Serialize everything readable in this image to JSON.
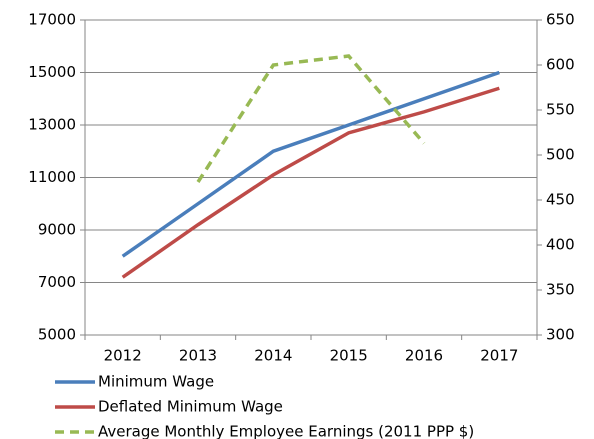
{
  "chart_data": {
    "type": "line",
    "categories": [
      "2012",
      "2013",
      "2014",
      "2015",
      "2016",
      "2017"
    ],
    "series": [
      {
        "name": "Minimum Wage",
        "color": "#4a7ebb",
        "values": [
          8000,
          10000,
          12000,
          13000,
          14000,
          15000
        ]
      },
      {
        "name": "Deflated Minimum Wage",
        "color": "#be4b48",
        "values": [
          7200,
          9200,
          11100,
          12700,
          13500,
          14400
        ]
      },
      {
        "name": "Average Monthly Employee Earnings (2011 PPP $)",
        "color": "#98b954",
        "axis": "y2",
        "dashed": true,
        "values": [
          null,
          470,
          600,
          610,
          513,
          null
        ]
      }
    ],
    "ylim": [
      5000,
      17000
    ],
    "yticks": [
      5000,
      7000,
      9000,
      11000,
      13000,
      15000,
      17000
    ],
    "y2lim": [
      300,
      650
    ],
    "y2ticks": [
      300,
      350,
      400,
      450,
      500,
      550,
      600,
      650
    ],
    "grid": true,
    "legend": "bottom"
  }
}
